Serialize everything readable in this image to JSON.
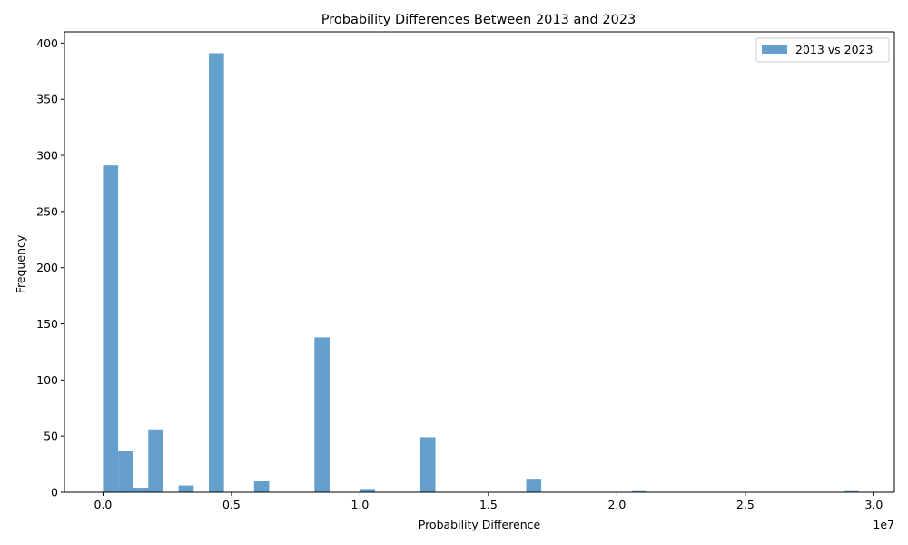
{
  "chart_data": {
    "type": "bar",
    "title": "Probability Differences Between 2013 and 2023",
    "xlabel": "Probability Difference",
    "ylabel": "Frequency",
    "x_offset_label": "1e7",
    "xlim": [
      -0.15,
      3.08
    ],
    "ylim": [
      0,
      410
    ],
    "x_ticks": [
      0.0,
      0.5,
      1.0,
      1.5,
      2.0,
      2.5,
      3.0
    ],
    "x_tick_labels": [
      "0.0",
      "0.5",
      "1.0",
      "1.5",
      "2.0",
      "2.5",
      "3.0"
    ],
    "y_ticks": [
      0,
      50,
      100,
      150,
      200,
      250,
      300,
      350,
      400
    ],
    "y_tick_labels": [
      "0",
      "50",
      "100",
      "150",
      "200",
      "250",
      "300",
      "350",
      "400"
    ],
    "bin_width": 0.0588,
    "x_unit_note": "x values in units of 1e7 as printed on the axis",
    "series": [
      {
        "name": "2013 vs 2023",
        "color": "#659fcb",
        "bins": [
          {
            "x0": 0.0,
            "count": 291
          },
          {
            "x0": 0.059,
            "count": 37
          },
          {
            "x0": 0.118,
            "count": 4
          },
          {
            "x0": 0.176,
            "count": 56
          },
          {
            "x0": 0.294,
            "count": 6
          },
          {
            "x0": 0.412,
            "count": 391
          },
          {
            "x0": 0.588,
            "count": 10
          },
          {
            "x0": 0.823,
            "count": 138
          },
          {
            "x0": 1.0,
            "count": 3
          },
          {
            "x0": 1.235,
            "count": 49
          },
          {
            "x0": 1.647,
            "count": 12
          },
          {
            "x0": 2.058,
            "count": 1
          },
          {
            "x0": 2.882,
            "count": 1
          }
        ]
      }
    ],
    "legend": {
      "position": "top-right"
    },
    "grid": false
  }
}
